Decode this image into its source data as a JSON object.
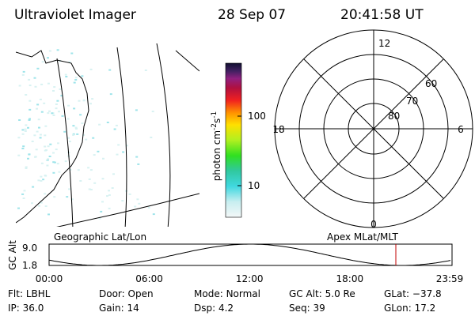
{
  "header": {
    "title": "Ultraviolet Imager",
    "date": "28 Sep 07",
    "time": "20:41:58 UT"
  },
  "colorbar": {
    "unit": "photon cm",
    "unit_exp1": "-2",
    "unit_mid": "s",
    "unit_exp2": "-1",
    "ticks": [
      "100",
      "10"
    ]
  },
  "polar": {
    "clock_labels": [
      "12",
      "18",
      "6",
      "0"
    ],
    "lat_labels": [
      "60",
      "70",
      "80"
    ]
  },
  "timeline": {
    "left_label": "Geographic Lat/Lon",
    "right_label": "Apex MLat/MLT",
    "axis_label": "GC Alt",
    "yticks": [
      "9.0",
      "1.8"
    ],
    "xticks": [
      "00:00",
      "06:00",
      "12:00",
      "18:00",
      "23:59"
    ]
  },
  "footer": {
    "rows": [
      [
        {
          "label": "Flt:",
          "value": "LBHL"
        },
        {
          "label": "Door:",
          "value": "Open"
        },
        {
          "label": "Mode:",
          "value": "Normal"
        },
        {
          "label": "GC Alt:",
          "value": "5.0 Re"
        },
        {
          "label": "GLat:",
          "value": "−37.8"
        }
      ],
      [
        {
          "label": "IP:",
          "value": "36.0"
        },
        {
          "label": "Gain:",
          "value": "14"
        },
        {
          "label": "Dsp:",
          "value": "4.2"
        },
        {
          "label": "Seq:",
          "value": "39"
        },
        {
          "label": "GLon:",
          "value": "17.2"
        }
      ]
    ]
  }
}
